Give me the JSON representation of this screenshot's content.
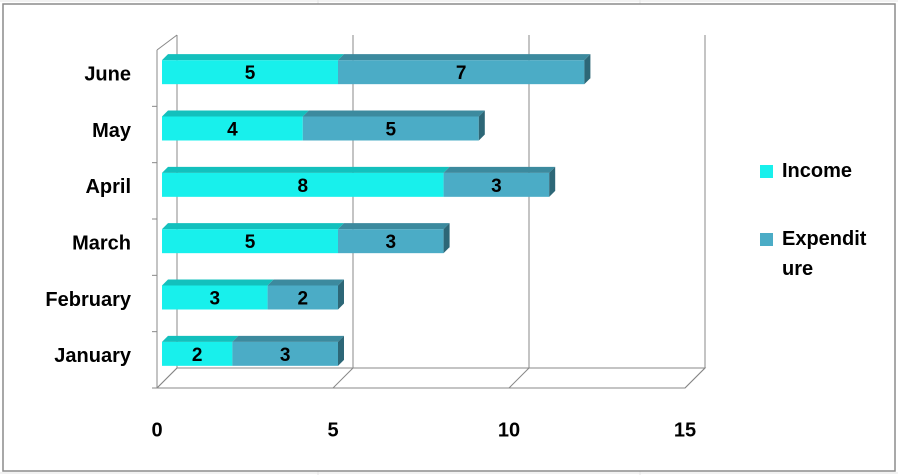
{
  "chart_data": {
    "type": "bar3d_stacked_horizontal",
    "categories": [
      "January",
      "February",
      "March",
      "April",
      "May",
      "June"
    ],
    "series": [
      {
        "name": "Income",
        "color": "#18f0ec",
        "values": [
          2,
          3,
          5,
          8,
          4,
          5
        ]
      },
      {
        "name": "Expenditure",
        "color": "#4bacc6",
        "values": [
          3,
          2,
          3,
          3,
          5,
          7
        ]
      }
    ],
    "xlim": [
      0,
      15
    ],
    "xticks": [
      0,
      5,
      10,
      15
    ],
    "grid": true,
    "legend": "right"
  }
}
